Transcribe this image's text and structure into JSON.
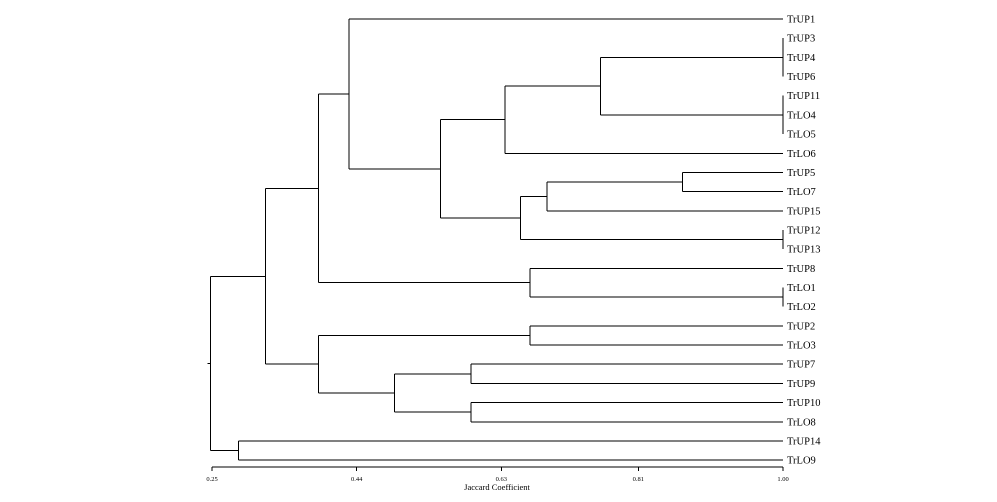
{
  "axis": {
    "title": "Jaccard Coefficient",
    "min": 0.25,
    "max": 1.0,
    "ticks": [
      {
        "value": 0.25,
        "label": "0.25"
      },
      {
        "value": 0.44,
        "label": "0.44"
      },
      {
        "value": 0.63,
        "label": "0.63"
      },
      {
        "value": 0.81,
        "label": "0.81"
      },
      {
        "value": 1.0,
        "label": "1.00"
      }
    ]
  },
  "leaves": [
    "TrUP1",
    "TrUP3",
    "TrUP4",
    "TrUP6",
    "TrUP11",
    "TrLO4",
    "TrLO5",
    "TrLO6",
    "TrUP5",
    "TrLO7",
    "TrUP15",
    "TrUP12",
    "TrUP13",
    "TrUP8",
    "TrLO1",
    "TrLO2",
    "TrUP2",
    "TrLO3",
    "TrUP7",
    "TrUP9",
    "TrUP10",
    "TrLO8",
    "TrUP14",
    "TrLO9"
  ],
  "merges": [
    {
      "id": "a",
      "similarity": 1.0,
      "children": [
        "TrUP3",
        "TrUP4",
        "TrUP6"
      ]
    },
    {
      "id": "b",
      "similarity": 1.0,
      "children": [
        "TrUP11",
        "TrLO4",
        "TrLO5"
      ]
    },
    {
      "id": "c",
      "similarity": 0.76,
      "children": [
        "a",
        "b"
      ]
    },
    {
      "id": "d",
      "similarity": 0.635,
      "children": [
        "c",
        "TrLO6"
      ]
    },
    {
      "id": "e",
      "similarity": 0.868,
      "children": [
        "TrUP5",
        "TrLO7"
      ]
    },
    {
      "id": "f",
      "similarity": 0.69,
      "children": [
        "e",
        "TrUP15"
      ]
    },
    {
      "id": "g",
      "similarity": 1.0,
      "children": [
        "TrUP12",
        "TrUP13"
      ]
    },
    {
      "id": "h",
      "similarity": 0.655,
      "children": [
        "f",
        "g"
      ]
    },
    {
      "id": "i",
      "similarity": 0.55,
      "children": [
        "d",
        "h"
      ]
    },
    {
      "id": "j",
      "similarity": 0.43,
      "children": [
        "TrUP1",
        "i"
      ]
    },
    {
      "id": "k",
      "similarity": 1.0,
      "children": [
        "TrLO1",
        "TrLO2"
      ]
    },
    {
      "id": "l",
      "similarity": 0.668,
      "children": [
        "TrUP8",
        "k"
      ]
    },
    {
      "id": "m",
      "similarity": 0.39,
      "children": [
        "j",
        "l"
      ]
    },
    {
      "id": "n",
      "similarity": 0.668,
      "children": [
        "TrUP2",
        "TrLO3"
      ]
    },
    {
      "id": "o",
      "similarity": 0.59,
      "children": [
        "TrUP7",
        "TrUP9"
      ]
    },
    {
      "id": "p",
      "similarity": 0.59,
      "children": [
        "TrUP10",
        "TrLO8"
      ]
    },
    {
      "id": "q",
      "similarity": 0.49,
      "children": [
        "o",
        "p"
      ]
    },
    {
      "id": "r",
      "similarity": 0.39,
      "children": [
        "n",
        "q"
      ]
    },
    {
      "id": "s",
      "similarity": 0.32,
      "children": [
        "m",
        "r"
      ]
    },
    {
      "id": "t",
      "similarity": 0.285,
      "children": [
        "TrUP14",
        "TrLO9"
      ]
    },
    {
      "id": "root",
      "similarity": 0.248,
      "children": [
        "s",
        "t"
      ]
    }
  ]
}
